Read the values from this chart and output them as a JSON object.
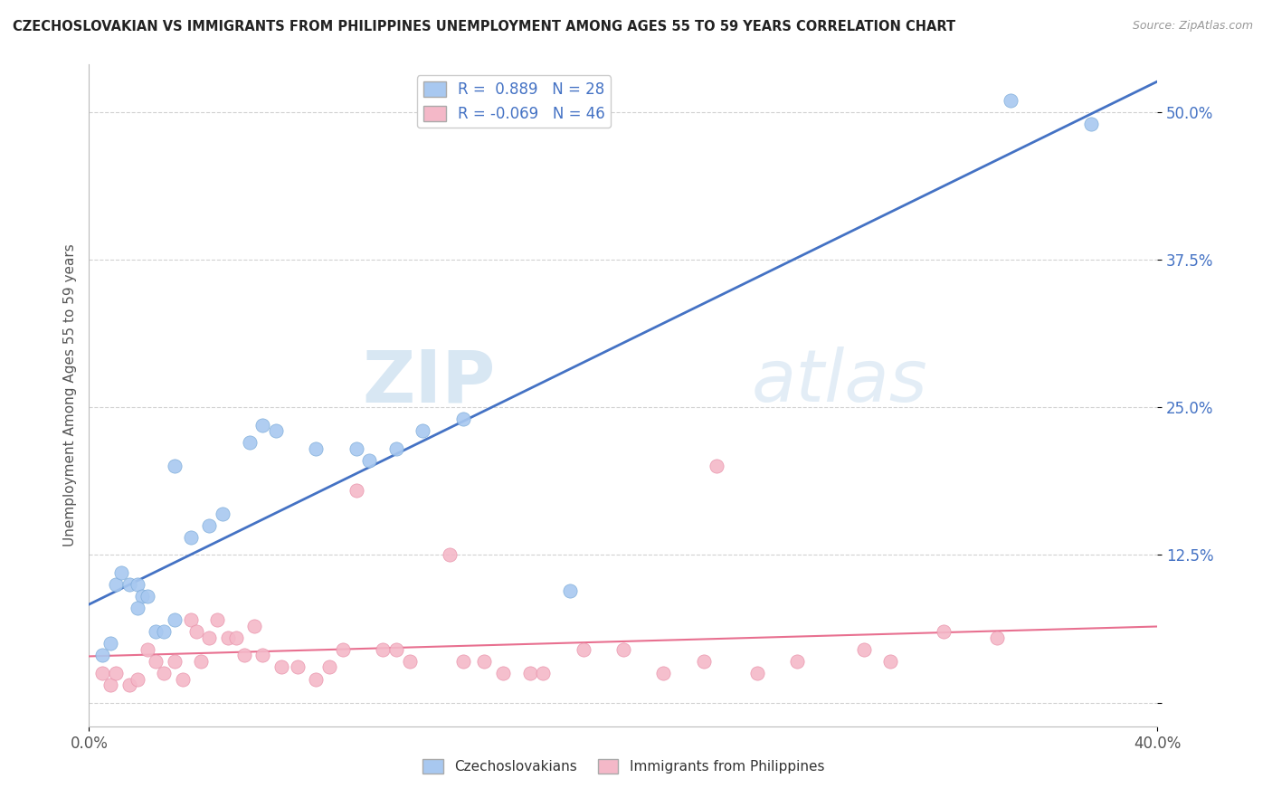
{
  "title": "CZECHOSLOVAKIAN VS IMMIGRANTS FROM PHILIPPINES UNEMPLOYMENT AMONG AGES 55 TO 59 YEARS CORRELATION CHART",
  "source": "Source: ZipAtlas.com",
  "ylabel": "Unemployment Among Ages 55 to 59 years",
  "xlim": [
    0.0,
    0.4
  ],
  "ylim": [
    -0.02,
    0.54
  ],
  "yticks": [
    0.0,
    0.125,
    0.25,
    0.375,
    0.5
  ],
  "ytick_labels": [
    "",
    "12.5%",
    "25.0%",
    "37.5%",
    "50.0%"
  ],
  "xtick_labels_edge": [
    "0.0%",
    "40.0%"
  ],
  "blue_R": 0.889,
  "blue_N": 28,
  "pink_R": -0.069,
  "pink_N": 46,
  "blue_color": "#A8C8F0",
  "pink_color": "#F4B8C8",
  "blue_edge_color": "#7AAAD8",
  "pink_edge_color": "#E890A8",
  "blue_line_color": "#4472C4",
  "pink_line_color": "#E87090",
  "blue_scatter": [
    [
      0.005,
      0.04
    ],
    [
      0.008,
      0.05
    ],
    [
      0.01,
      0.1
    ],
    [
      0.012,
      0.11
    ],
    [
      0.015,
      0.1
    ],
    [
      0.018,
      0.1
    ],
    [
      0.02,
      0.09
    ],
    [
      0.022,
      0.09
    ],
    [
      0.018,
      0.08
    ],
    [
      0.025,
      0.06
    ],
    [
      0.028,
      0.06
    ],
    [
      0.032,
      0.07
    ],
    [
      0.038,
      0.14
    ],
    [
      0.045,
      0.15
    ],
    [
      0.032,
      0.2
    ],
    [
      0.05,
      0.16
    ],
    [
      0.06,
      0.22
    ],
    [
      0.07,
      0.23
    ],
    [
      0.065,
      0.235
    ],
    [
      0.085,
      0.215
    ],
    [
      0.1,
      0.215
    ],
    [
      0.105,
      0.205
    ],
    [
      0.115,
      0.215
    ],
    [
      0.125,
      0.23
    ],
    [
      0.14,
      0.24
    ],
    [
      0.18,
      0.095
    ],
    [
      0.345,
      0.51
    ],
    [
      0.375,
      0.49
    ]
  ],
  "pink_scatter": [
    [
      0.005,
      0.025
    ],
    [
      0.008,
      0.015
    ],
    [
      0.01,
      0.025
    ],
    [
      0.015,
      0.015
    ],
    [
      0.018,
      0.02
    ],
    [
      0.022,
      0.045
    ],
    [
      0.025,
      0.035
    ],
    [
      0.028,
      0.025
    ],
    [
      0.032,
      0.035
    ],
    [
      0.035,
      0.02
    ],
    [
      0.038,
      0.07
    ],
    [
      0.04,
      0.06
    ],
    [
      0.042,
      0.035
    ],
    [
      0.045,
      0.055
    ],
    [
      0.048,
      0.07
    ],
    [
      0.052,
      0.055
    ],
    [
      0.055,
      0.055
    ],
    [
      0.058,
      0.04
    ],
    [
      0.062,
      0.065
    ],
    [
      0.065,
      0.04
    ],
    [
      0.072,
      0.03
    ],
    [
      0.078,
      0.03
    ],
    [
      0.085,
      0.02
    ],
    [
      0.09,
      0.03
    ],
    [
      0.095,
      0.045
    ],
    [
      0.1,
      0.18
    ],
    [
      0.11,
      0.045
    ],
    [
      0.115,
      0.045
    ],
    [
      0.12,
      0.035
    ],
    [
      0.135,
      0.125
    ],
    [
      0.14,
      0.035
    ],
    [
      0.148,
      0.035
    ],
    [
      0.155,
      0.025
    ],
    [
      0.165,
      0.025
    ],
    [
      0.17,
      0.025
    ],
    [
      0.185,
      0.045
    ],
    [
      0.2,
      0.045
    ],
    [
      0.215,
      0.025
    ],
    [
      0.23,
      0.035
    ],
    [
      0.235,
      0.2
    ],
    [
      0.25,
      0.025
    ],
    [
      0.265,
      0.035
    ],
    [
      0.29,
      0.045
    ],
    [
      0.3,
      0.035
    ],
    [
      0.32,
      0.06
    ],
    [
      0.34,
      0.055
    ]
  ],
  "watermark_zip": "ZIP",
  "watermark_atlas": "atlas",
  "background_color": "#FFFFFF",
  "grid_color": "#CCCCCC",
  "legend_label_color": "#4472C4",
  "tick_color": "#4472C4"
}
